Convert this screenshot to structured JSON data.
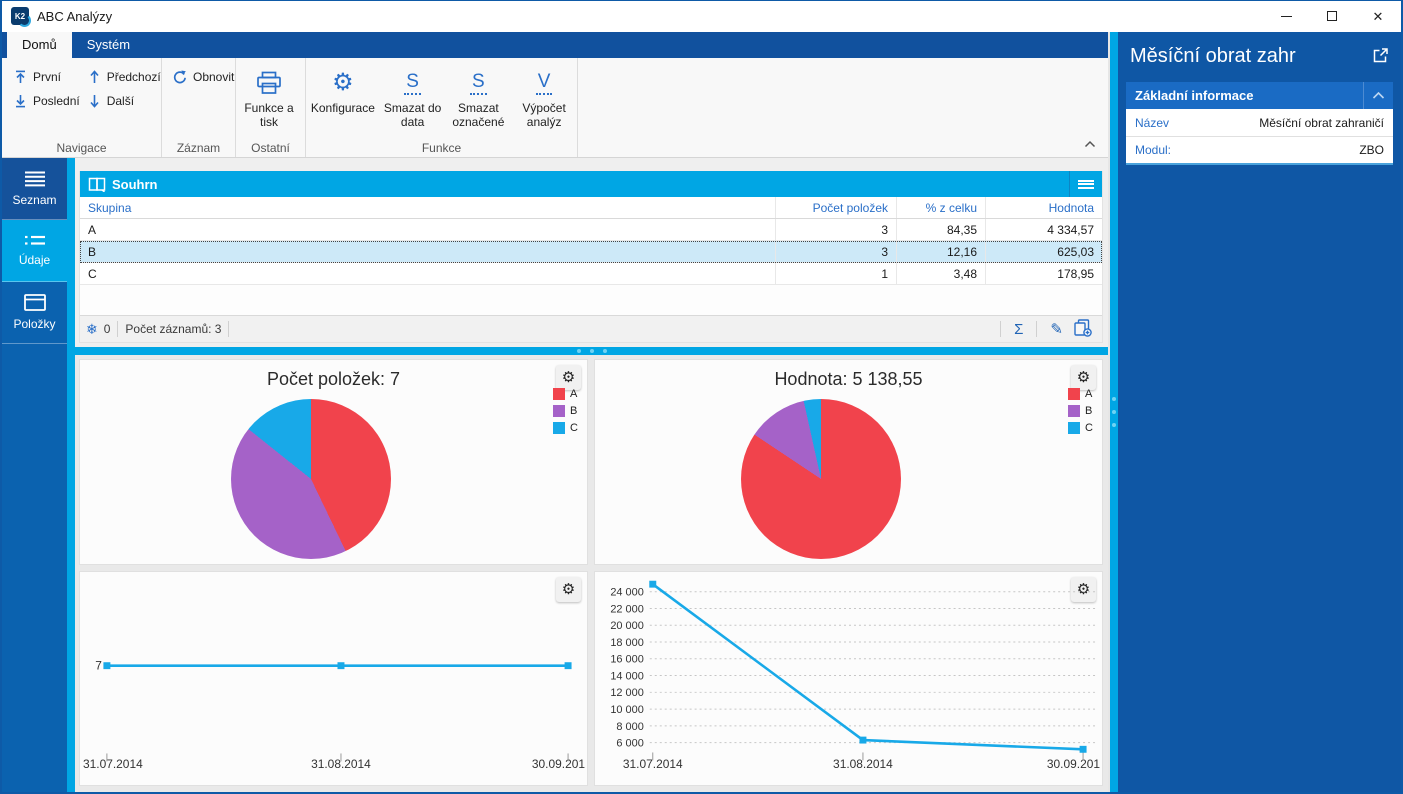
{
  "window": {
    "title": "ABC Analýzy",
    "logo_text": "K2"
  },
  "ribbon": {
    "tabs": [
      {
        "label": "Domů",
        "active": true
      },
      {
        "label": "Systém",
        "active": false
      }
    ],
    "groups": [
      {
        "label": "Navigace",
        "buttons": [
          {
            "label": "První",
            "icon": "arrow-up-to-bar"
          },
          {
            "label": "Poslední",
            "icon": "arrow-down-to-bar"
          },
          {
            "label": "Předchozí",
            "icon": "arrow-up"
          },
          {
            "label": "Další",
            "icon": "arrow-down"
          }
        ]
      },
      {
        "label": "Záznam",
        "buttons": [
          {
            "label": "Obnovit",
            "icon": "refresh"
          }
        ]
      },
      {
        "label": "Ostatní",
        "buttons": [
          {
            "label": "Funkce a tisk",
            "icon": "printer"
          }
        ]
      },
      {
        "label": "Funkce",
        "buttons": [
          {
            "label": "Konfigurace",
            "icon": "gear"
          },
          {
            "label": "Smazat do data",
            "icon": "letter-dotted",
            "icon_text": "S"
          },
          {
            "label": "Smazat označené",
            "icon": "letter-dotted",
            "icon_text": "S"
          },
          {
            "label": "Výpočet analýz",
            "icon": "letter-dotted",
            "icon_text": "V"
          }
        ]
      }
    ]
  },
  "sidebar": {
    "items": [
      {
        "label": "Seznam",
        "icon": "menu-lines",
        "active": false
      },
      {
        "label": "Údaje",
        "icon": "detail-list",
        "active": true
      },
      {
        "label": "Položky",
        "icon": "box",
        "active": false
      }
    ]
  },
  "table": {
    "title": "Souhrn",
    "columns": [
      "Skupina",
      "Počet položek",
      "% z celku",
      "Hodnota"
    ],
    "rows": [
      {
        "group": "A",
        "count": "3",
        "percent": "84,35",
        "value": "4 334,57",
        "selected": false
      },
      {
        "group": "B",
        "count": "3",
        "percent": "12,16",
        "value": "625,03",
        "selected": true
      },
      {
        "group": "C",
        "count": "1",
        "percent": "3,48",
        "value": "178,95",
        "selected": false
      }
    ],
    "status": {
      "counter": "0",
      "records": "Počet záznamů: 3"
    }
  },
  "side_panel": {
    "title": "Měsíční obrat zahr",
    "section_title": "Základní informace",
    "fields": [
      {
        "label": "Název",
        "value": "Měsíční obrat zahraničí"
      },
      {
        "label": "Modul:",
        "value": "ZBO"
      }
    ]
  },
  "chart_data": [
    {
      "id": "pie-count",
      "type": "pie",
      "title": "Počet položek: 7",
      "categories": [
        "A",
        "B",
        "C"
      ],
      "values": [
        3,
        3,
        1
      ],
      "colors": [
        "#F1434C",
        "#A562C8",
        "#18A9E8"
      ],
      "legend_position": "right"
    },
    {
      "id": "pie-value",
      "type": "pie",
      "title": "Hodnota: 5 138,55",
      "categories": [
        "A",
        "B",
        "C"
      ],
      "values": [
        84.35,
        12.16,
        3.48
      ],
      "colors": [
        "#F1434C",
        "#A562C8",
        "#18A9E8"
      ],
      "legend_position": "right"
    },
    {
      "id": "line-count",
      "type": "line",
      "x": [
        "31.07.2014",
        "31.08.2014",
        "30.09.201"
      ],
      "values": [
        7,
        7,
        7
      ],
      "y_axis_label": "7",
      "color": "#18A9E8",
      "grid": false
    },
    {
      "id": "line-value",
      "type": "line",
      "x": [
        "31.07.2014",
        "31.08.2014",
        "30.09.201"
      ],
      "values": [
        24900,
        6300,
        5200
      ],
      "y_ticks": [
        "24 000",
        "22 000",
        "20 000",
        "18 000",
        "16 000",
        "14 000",
        "12 000",
        "10 000",
        "8 000",
        "6 000"
      ],
      "ylim": [
        5000,
        25000
      ],
      "color": "#18A9E8",
      "grid": "dashed"
    }
  ],
  "colors": {
    "accent_cyan": "#00A6E4",
    "tabstrip_blue": "#11519E",
    "panel_blue": "#0F57A5",
    "section_blue": "#1A6BC4",
    "link_blue": "#2A6FC8",
    "selection": "#CDE9F8"
  }
}
